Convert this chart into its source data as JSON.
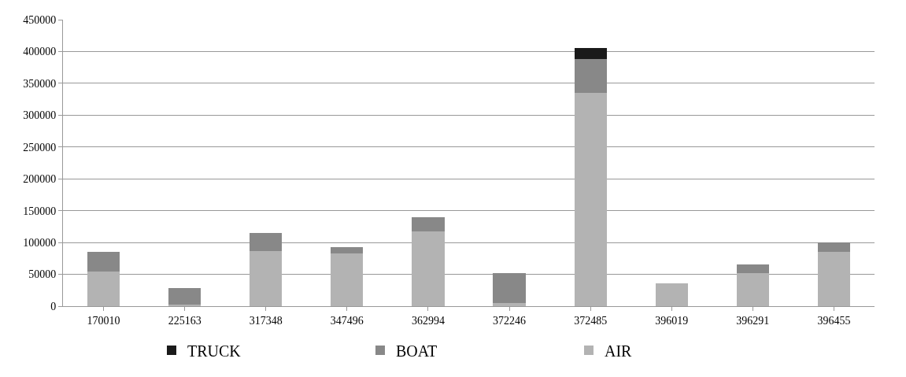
{
  "chart_data": {
    "type": "bar",
    "stacked": true,
    "categories": [
      "170010",
      "225163",
      "317348",
      "347496",
      "362994",
      "372246",
      "372485",
      "396019",
      "396291",
      "396455"
    ],
    "series": [
      {
        "name": "AIR",
        "color": "#b3b3b3",
        "values": [
          55000,
          3000,
          87000,
          83000,
          118000,
          5000,
          335000,
          36000,
          52000,
          85000
        ]
      },
      {
        "name": "BOAT",
        "color": "#888888",
        "values": [
          30000,
          26000,
          28000,
          9500,
          22000,
          47000,
          53000,
          0,
          14000,
          15000
        ]
      },
      {
        "name": "TRUCK",
        "color": "#1a1a1a",
        "values": [
          0,
          0,
          0,
          0,
          0,
          0,
          17000,
          0,
          0,
          0
        ]
      }
    ],
    "ylim": [
      0,
      450000
    ],
    "yticks": [
      0,
      50000,
      100000,
      150000,
      200000,
      250000,
      300000,
      350000,
      400000,
      450000
    ],
    "grid": "y",
    "legend": "bottom"
  }
}
